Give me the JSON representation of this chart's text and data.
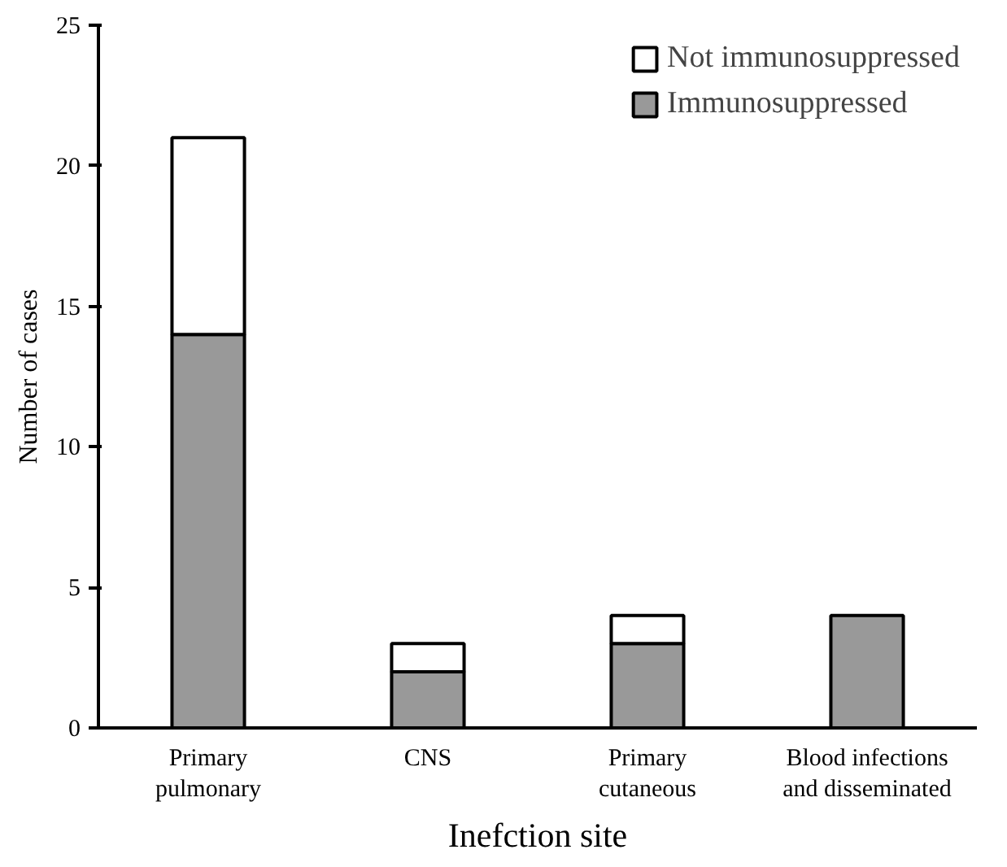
{
  "chart_data": {
    "type": "bar",
    "stacked": true,
    "xlabel": "Inefction site",
    "ylabel": "Number of cases",
    "categories": [
      "Primary\npulmonary",
      "CNS",
      "Primary\ncutaneous",
      "Blood infections\nand disseminated"
    ],
    "series": [
      {
        "name": "Immunosuppressed",
        "color": "#999999",
        "values": [
          14,
          2,
          3,
          4
        ]
      },
      {
        "name": "Not immunosuppressed",
        "color": "#ffffff",
        "values": [
          7,
          1,
          1,
          null
        ]
      }
    ],
    "ylim": [
      0,
      25
    ],
    "yticks": [
      0,
      5,
      10,
      15,
      20,
      25
    ],
    "grid": false,
    "legend": "top right"
  }
}
